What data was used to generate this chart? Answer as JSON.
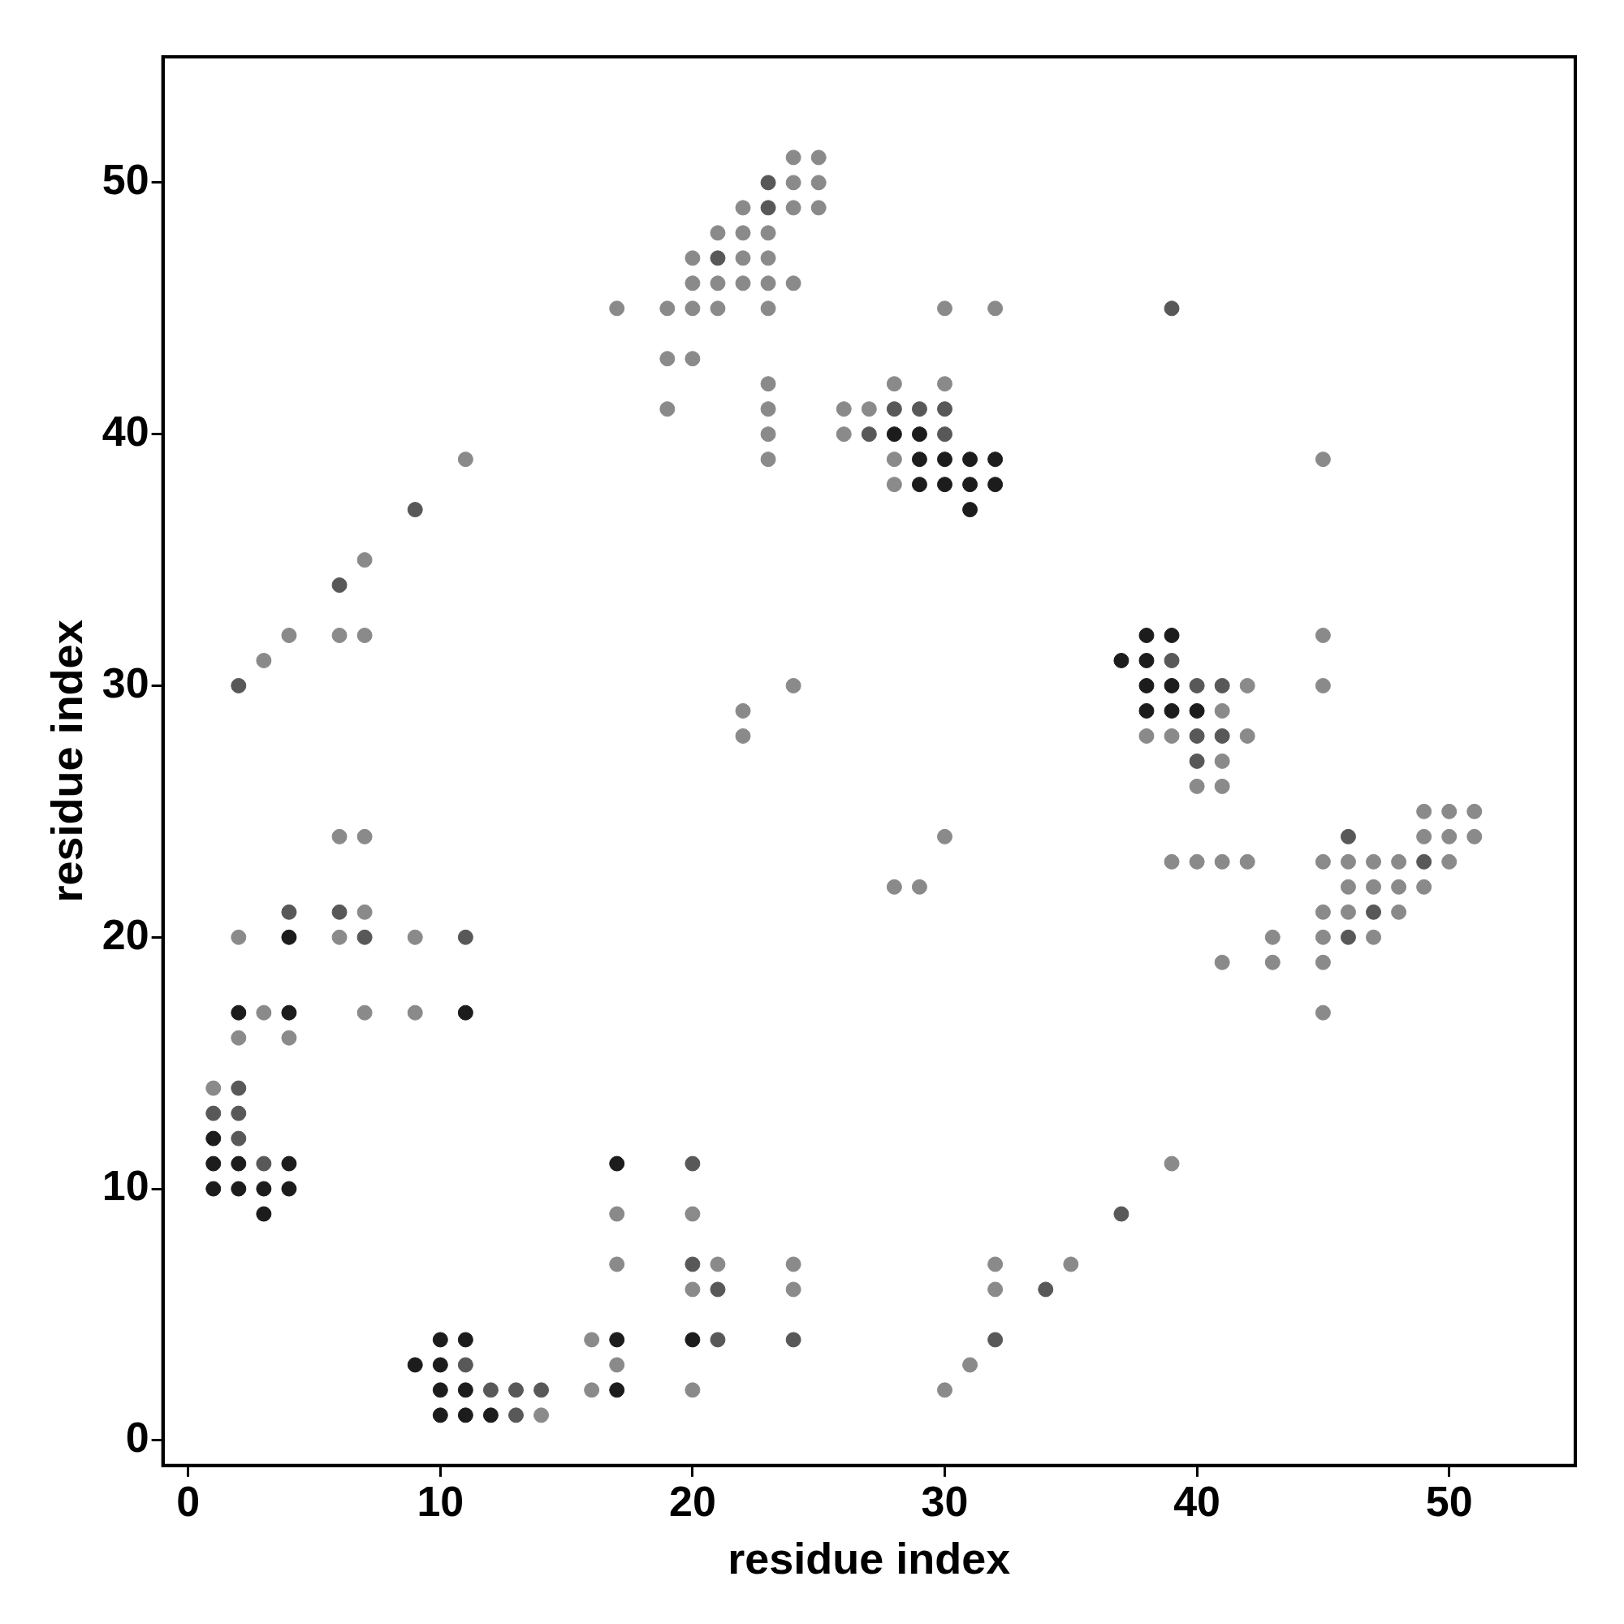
{
  "chart_data": {
    "type": "scatter",
    "xlabel": "residue index",
    "ylabel": "residue index",
    "xlim": [
      -1,
      55
    ],
    "ylim": [
      -1,
      55
    ],
    "xticks": [
      0,
      10,
      20,
      30,
      40,
      50
    ],
    "yticks": [
      0,
      10,
      20,
      30,
      40,
      50
    ],
    "grid": false,
    "legend": false,
    "marker": "circle",
    "series": [
      {
        "color": "#8a8a8a",
        "x": [
          1,
          3,
          2,
          4,
          2,
          6,
          7,
          7,
          6,
          7,
          9,
          9,
          3,
          4,
          6,
          7,
          7,
          11,
          14,
          16,
          16,
          17,
          17,
          17,
          20,
          21,
          20,
          20,
          24,
          24,
          30,
          31,
          32,
          32,
          35,
          39,
          17,
          19,
          20,
          21,
          19,
          20,
          19,
          20,
          22,
          23,
          20,
          21,
          22,
          23,
          24,
          21,
          22,
          23,
          22,
          24,
          25,
          24,
          25,
          24,
          25,
          23,
          23,
          23,
          23,
          23,
          22,
          22,
          24,
          30,
          32,
          26,
          27,
          28,
          30,
          26,
          28,
          28,
          29,
          45,
          42,
          41,
          38,
          39,
          42,
          41,
          40,
          41,
          45,
          45,
          39,
          40,
          41,
          42,
          41,
          43,
          43,
          45,
          46,
          47,
          48,
          50,
          45,
          46,
          47,
          48,
          49,
          46,
          48,
          45,
          47,
          45,
          45,
          49,
          50,
          51,
          49,
          50,
          51,
          28,
          30
        ],
        "values": [
          14,
          17,
          16,
          16,
          20,
          24,
          24,
          21,
          20,
          17,
          20,
          17,
          31,
          32,
          32,
          32,
          35,
          39,
          1,
          4,
          2,
          9,
          7,
          3,
          9,
          7,
          6,
          2,
          7,
          6,
          2,
          3,
          6,
          7,
          7,
          11,
          45,
          45,
          45,
          45,
          43,
          43,
          41,
          47,
          47,
          47,
          46,
          46,
          46,
          46,
          46,
          48,
          48,
          48,
          49,
          49,
          49,
          50,
          50,
          51,
          51,
          45,
          42,
          41,
          40,
          39,
          29,
          28,
          30,
          45,
          45,
          41,
          41,
          42,
          42,
          40,
          39,
          38,
          22,
          39,
          30,
          29,
          28,
          28,
          28,
          27,
          26,
          26,
          32,
          30,
          23,
          23,
          23,
          23,
          19,
          20,
          19,
          23,
          23,
          23,
          23,
          23,
          21,
          22,
          22,
          22,
          22,
          21,
          21,
          20,
          20,
          19,
          17,
          25,
          25,
          25,
          24,
          24,
          24,
          22,
          24
        ]
      },
      {
        "color": "#585858",
        "x": [
          2,
          1,
          2,
          2,
          3,
          4,
          6,
          7,
          11,
          2,
          6,
          9,
          11,
          12,
          13,
          14,
          13,
          20,
          20,
          21,
          21,
          24,
          32,
          34,
          37,
          21,
          23,
          23,
          28,
          29,
          30,
          27,
          30,
          39,
          39,
          40,
          41,
          40,
          41,
          40,
          46,
          49,
          47,
          46
        ],
        "values": [
          14,
          13,
          13,
          12,
          11,
          21,
          21,
          20,
          20,
          30,
          34,
          37,
          3,
          2,
          2,
          2,
          1,
          11,
          7,
          6,
          4,
          4,
          4,
          6,
          9,
          47,
          49,
          50,
          41,
          41,
          41,
          40,
          40,
          45,
          31,
          30,
          30,
          28,
          28,
          27,
          24,
          23,
          21,
          20
        ]
      },
      {
        "color": "#1c1c1c",
        "x": [
          1,
          1,
          2,
          4,
          1,
          2,
          3,
          4,
          3,
          2,
          4,
          4,
          11,
          9,
          10,
          11,
          10,
          10,
          11,
          10,
          11,
          12,
          17,
          17,
          17,
          20,
          28,
          29,
          29,
          30,
          31,
          32,
          29,
          30,
          31,
          32,
          31,
          37,
          38,
          39,
          38,
          38,
          39,
          38,
          39,
          40
        ],
        "values": [
          12,
          11,
          11,
          11,
          10,
          10,
          10,
          10,
          9,
          17,
          17,
          20,
          17,
          3,
          4,
          4,
          3,
          2,
          2,
          1,
          1,
          1,
          11,
          4,
          2,
          4,
          40,
          40,
          39,
          39,
          39,
          39,
          38,
          38,
          38,
          38,
          37,
          31,
          32,
          32,
          31,
          30,
          30,
          29,
          29,
          29
        ]
      }
    ]
  }
}
